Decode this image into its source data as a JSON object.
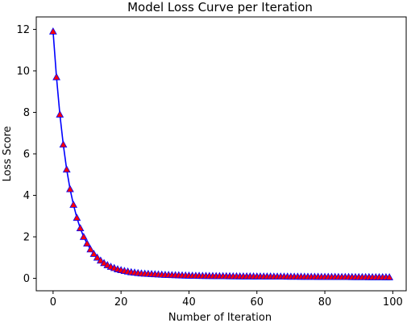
{
  "chart_data": {
    "type": "line",
    "title": "Model Loss Curve per Iteration",
    "xlabel": "Number of Iteration",
    "ylabel": "Loss Score",
    "xlim": [
      -4.95,
      103.95
    ],
    "ylim": [
      -0.6,
      12.6
    ],
    "xticks": [
      0,
      20,
      40,
      60,
      80,
      100
    ],
    "yticks": [
      0,
      2,
      4,
      6,
      8,
      10,
      12
    ],
    "grid": false,
    "line_color": "#0000ff",
    "marker": "triangle",
    "marker_face_color": "#ff0000",
    "marker_edge_color": "#0000ff",
    "series": [
      {
        "x": [
          0,
          1,
          2,
          3,
          4,
          5,
          6,
          7,
          8,
          9,
          10,
          11,
          12,
          13,
          14,
          15,
          16,
          17,
          18,
          19,
          20,
          21,
          22,
          23,
          24,
          25,
          26,
          27,
          28,
          29,
          30,
          31,
          32,
          33,
          34,
          35,
          36,
          37,
          38,
          39,
          40,
          41,
          42,
          43,
          44,
          45,
          46,
          47,
          48,
          49,
          50,
          51,
          52,
          53,
          54,
          55,
          56,
          57,
          58,
          59,
          60,
          61,
          62,
          63,
          64,
          65,
          66,
          67,
          68,
          69,
          70,
          71,
          72,
          73,
          74,
          75,
          76,
          77,
          78,
          79,
          80,
          81,
          82,
          83,
          84,
          85,
          86,
          87,
          88,
          89,
          90,
          91,
          92,
          93,
          94,
          95,
          96,
          97,
          98,
          99
        ],
        "y": [
          11.9,
          9.7,
          7.9,
          6.45,
          5.25,
          4.3,
          3.55,
          2.92,
          2.42,
          2.0,
          1.68,
          1.4,
          1.18,
          1.0,
          0.86,
          0.74,
          0.64,
          0.56,
          0.5,
          0.44,
          0.4,
          0.36,
          0.33,
          0.3,
          0.28,
          0.26,
          0.24,
          0.23,
          0.22,
          0.21,
          0.2,
          0.19,
          0.18,
          0.17,
          0.165,
          0.16,
          0.155,
          0.15,
          0.145,
          0.14,
          0.135,
          0.13,
          0.128,
          0.125,
          0.122,
          0.12,
          0.118,
          0.116,
          0.114,
          0.112,
          0.11,
          0.108,
          0.106,
          0.104,
          0.102,
          0.1,
          0.099,
          0.098,
          0.097,
          0.096,
          0.095,
          0.094,
          0.093,
          0.092,
          0.091,
          0.09,
          0.089,
          0.088,
          0.087,
          0.086,
          0.085,
          0.084,
          0.083,
          0.082,
          0.081,
          0.08,
          0.079,
          0.078,
          0.077,
          0.076,
          0.075,
          0.074,
          0.073,
          0.072,
          0.071,
          0.07,
          0.069,
          0.068,
          0.067,
          0.066,
          0.065,
          0.064,
          0.063,
          0.062,
          0.061,
          0.06,
          0.059,
          0.058,
          0.057,
          0.056
        ]
      }
    ]
  }
}
